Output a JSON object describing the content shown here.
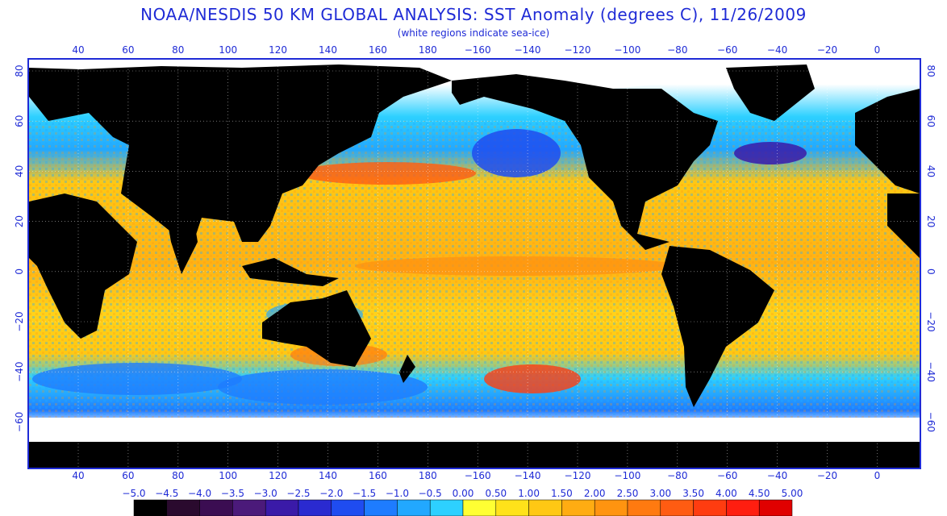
{
  "header": {
    "title": "NOAA/NESDIS 50 KM GLOBAL ANALYSIS: SST Anomaly (degrees C), 11/26/2009",
    "subtitle": "(white regions indicate sea-ice)"
  },
  "axes": {
    "lon_top": [
      "40",
      "60",
      "80",
      "100",
      "120",
      "140",
      "160",
      "180",
      "−160",
      "−140",
      "−120",
      "−100",
      "−80",
      "−60",
      "−40",
      "−20",
      "0"
    ],
    "lon_bottom": [
      "40",
      "60",
      "80",
      "100",
      "120",
      "140",
      "160",
      "180",
      "−160",
      "−140",
      "−120",
      "−100",
      "−80",
      "−60",
      "−40",
      "−20",
      "0"
    ],
    "lat_left": [
      "80",
      "60",
      "40",
      "20",
      "0",
      "−20",
      "−40",
      "−60"
    ],
    "lat_right": [
      "80",
      "60",
      "40",
      "20",
      "0",
      "−20",
      "−40",
      "−60"
    ]
  },
  "legend": {
    "labels": [
      "−5.0",
      "−4.5",
      "−4.0",
      "−3.5",
      "−3.0",
      "−2.5",
      "−2.0",
      "−1.5",
      "−1.0",
      "−0.5",
      "0.00",
      "0.50",
      "1.00",
      "1.50",
      "2.00",
      "2.50",
      "3.00",
      "3.50",
      "4.00",
      "4.50",
      "5.00"
    ],
    "colors": [
      "#000000",
      "#2a0a2e",
      "#3b0d52",
      "#4b1a7a",
      "#3a1aa8",
      "#2a2ad0",
      "#1f4cf0",
      "#1e7cff",
      "#22a8ff",
      "#2dd0ff",
      "#ffff33",
      "#ffe21a",
      "#ffc814",
      "#ffac12",
      "#ff9410",
      "#ff7a10",
      "#ff5c12",
      "#ff3c10",
      "#ff1e10",
      "#e00000"
    ]
  },
  "colors": {
    "frame": "#1f2bd6",
    "land": "#000000",
    "ice": "#ffffff",
    "anomaly_warm": "#ffc814",
    "anomaly_cool": "#22a8ff"
  }
}
